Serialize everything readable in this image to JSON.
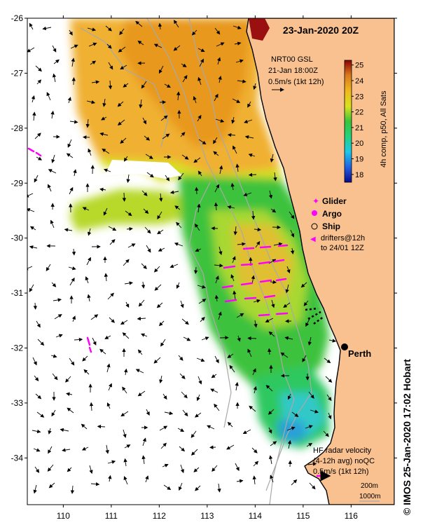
{
  "title": "23-Jan-2020 20Z",
  "product": {
    "line1": "NRT00 GSL",
    "line2": "21-Jan 18:00Z",
    "line3": "0.5m/s (1kt 12h)"
  },
  "colorbar": {
    "label": "4h comp, p50, All Sats",
    "ticks": [
      "18",
      "19",
      "20",
      "21",
      "22",
      "23",
      "24",
      "25"
    ],
    "min": 17.5,
    "max": 25.3
  },
  "legend": {
    "glider": "Glider",
    "argo": "Argo",
    "ship": "Ship",
    "drifters_line1": "drifters@12h",
    "drifters_line2": "to 24/01 12Z",
    "glider_color": "#ff00ff",
    "argo_color": "#ff00ff"
  },
  "city": {
    "name": "Perth",
    "lon": 115.86,
    "lat": -31.95
  },
  "hf_radar": {
    "line1": "HF radar velocity",
    "line2": "(4-12h avg) noQC",
    "line3": "0.5m/s (1kt 12h)"
  },
  "isobaths": {
    "line1": "200m",
    "line2": "1000m"
  },
  "credit": "© IMOS 25-Jan-2020 17:02 Hobart",
  "axes": {
    "lat_ticks": [
      "-26",
      "-27",
      "-28",
      "-29",
      "-30",
      "-31",
      "-32",
      "-33",
      "-34"
    ],
    "lon_ticks": [
      "110",
      "111",
      "112",
      "113",
      "114",
      "115",
      "116"
    ],
    "lon_range": [
      109.25,
      116.9
    ],
    "lat_range": [
      -34.85,
      -26.0
    ]
  },
  "colors": {
    "land": "#f9c18f",
    "coast": "#000000",
    "isobath": "#a9a9a9"
  }
}
